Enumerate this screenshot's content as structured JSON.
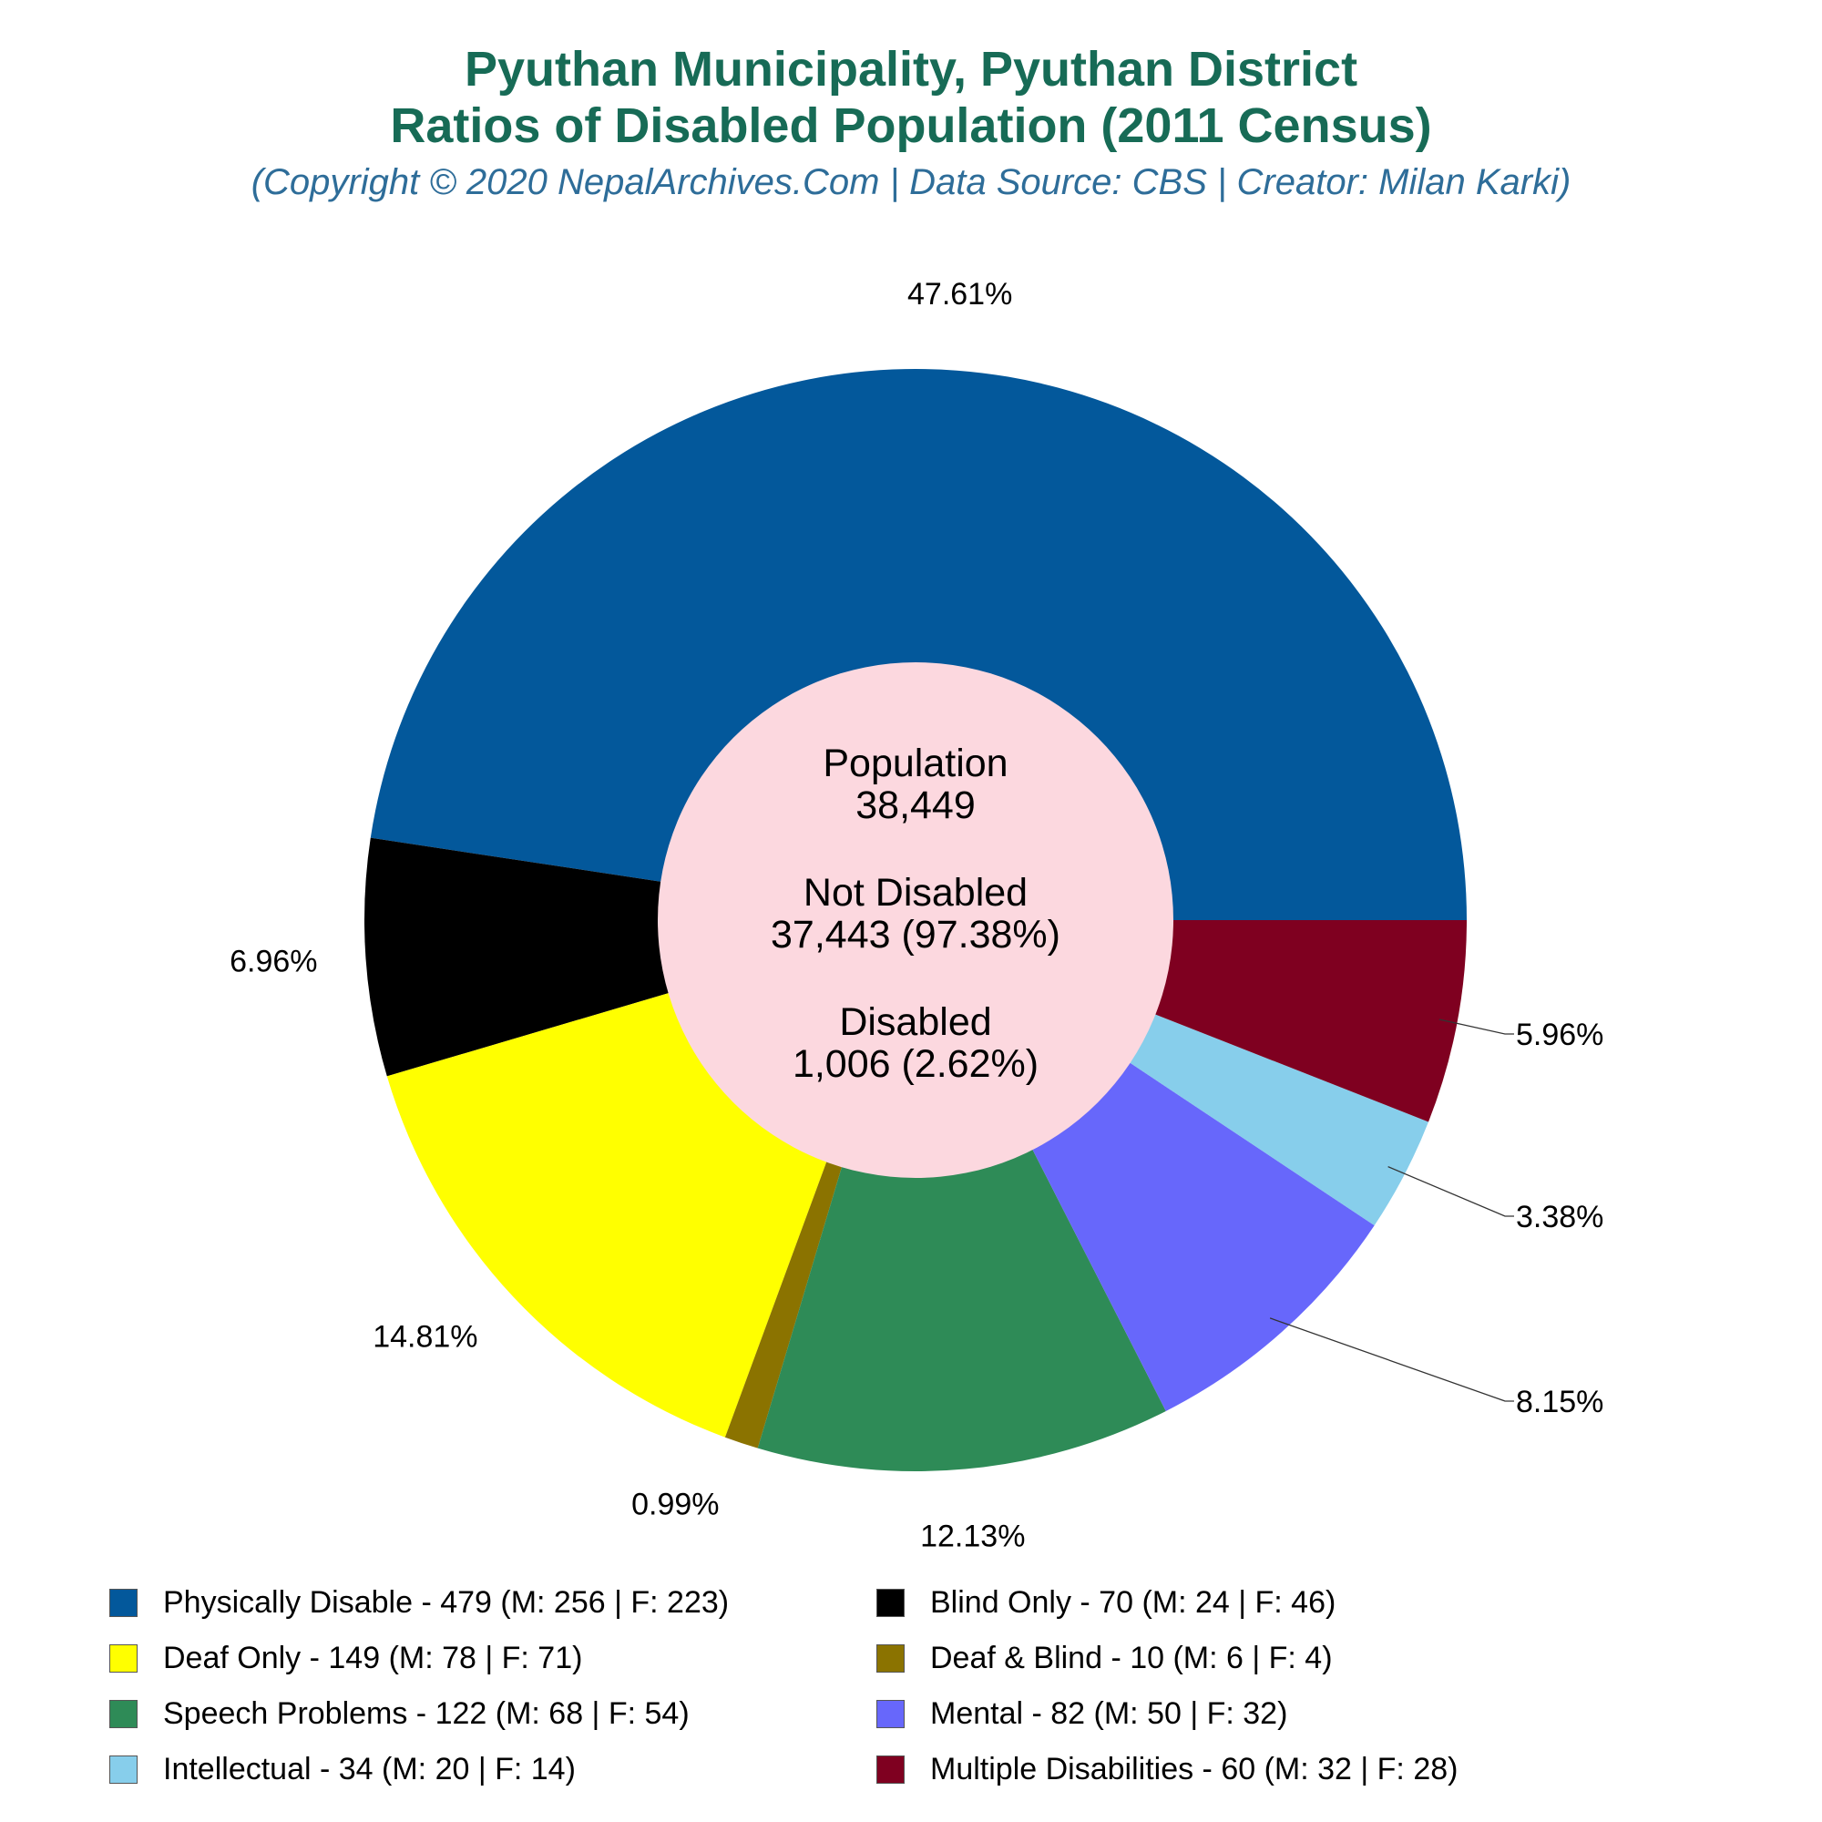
{
  "title_line1": "Pyuthan Municipality, Pyuthan District",
  "title_line2": "Ratios of Disabled Population (2011 Census)",
  "subtitle": "(Copyright © 2020 NepalArchives.Com | Data Source: CBS | Creator: Milan Karki)",
  "center": {
    "population_label": "Population",
    "population_value": "38,449",
    "not_disabled_label": "Not Disabled",
    "not_disabled_value": "37,443 (97.38%)",
    "disabled_label": "Disabled",
    "disabled_value": "1,006 (2.62%)"
  },
  "chart_data": {
    "type": "pie",
    "title": "Pyuthan Municipality, Pyuthan District Ratios of Disabled Population (2011 Census)",
    "start": "3 o'clock, counter-clockwise",
    "slices": [
      {
        "name": "Physically Disable",
        "value": 479,
        "male": 256,
        "female": 223,
        "percent_label": "47.61%",
        "color": "#03589b",
        "legend": "Physically Disable - 479 (M: 256 | F: 223)"
      },
      {
        "name": "Blind Only",
        "value": 70,
        "male": 24,
        "female": 46,
        "percent_label": "6.96%",
        "color": "#000000",
        "legend": "Blind Only - 70 (M: 24 | F: 46)"
      },
      {
        "name": "Deaf Only",
        "value": 149,
        "male": 78,
        "female": 71,
        "percent_label": "14.81%",
        "color": "#ffff00",
        "legend": "Deaf Only - 149 (M: 78 | F: 71)"
      },
      {
        "name": "Deaf & Blind",
        "value": 10,
        "male": 6,
        "female": 4,
        "percent_label": "0.99%",
        "color": "#8b7300",
        "legend": "Deaf & Blind - 10 (M: 6 | F: 4)"
      },
      {
        "name": "Speech Problems",
        "value": 122,
        "male": 68,
        "female": 54,
        "percent_label": "12.13%",
        "color": "#2e8b57",
        "legend": "Speech Problems - 122 (M: 68 | F: 54)"
      },
      {
        "name": "Mental",
        "value": 82,
        "male": 50,
        "female": 32,
        "percent_label": "8.15%",
        "color": "#6767fb",
        "legend": "Mental - 82 (M: 50 | F: 32)"
      },
      {
        "name": "Intellectual",
        "value": 34,
        "male": 20,
        "female": 14,
        "percent_label": "3.38%",
        "color": "#87ceeb",
        "legend": "Intellectual - 34 (M: 20 | F: 14)"
      },
      {
        "name": "Multiple Disabilities",
        "value": 60,
        "male": 32,
        "female": 28,
        "percent_label": "5.96%",
        "color": "#7f0020",
        "legend": "Multiple Disabilities - 60 (M: 32 | F: 28)"
      }
    ],
    "center_fill": "#fcd8df",
    "legend_placement": "bottom, two columns"
  }
}
